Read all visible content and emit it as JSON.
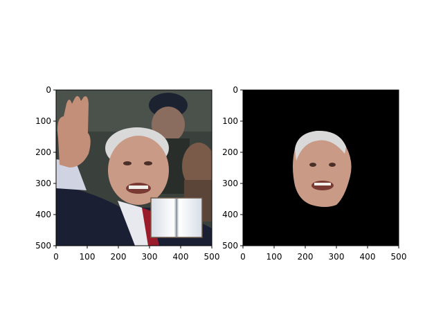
{
  "panels": [
    {
      "id": "left",
      "xticks": [
        "0",
        "100",
        "200",
        "300",
        "400",
        "500"
      ],
      "yticks": [
        "0",
        "100",
        "200",
        "300",
        "400",
        "500"
      ]
    },
    {
      "id": "right",
      "xticks": [
        "0",
        "100",
        "200",
        "300",
        "400",
        "500"
      ],
      "yticks": [
        "0",
        "100",
        "200",
        "300",
        "400",
        "500"
      ]
    }
  ],
  "colors": {
    "background_black": "#000000",
    "skin": "#c99a86",
    "hair": "#d9d9d9",
    "suit": "#1b1f33",
    "tie": "#9a1c2a",
    "crowd_dark": "#2f3430"
  }
}
